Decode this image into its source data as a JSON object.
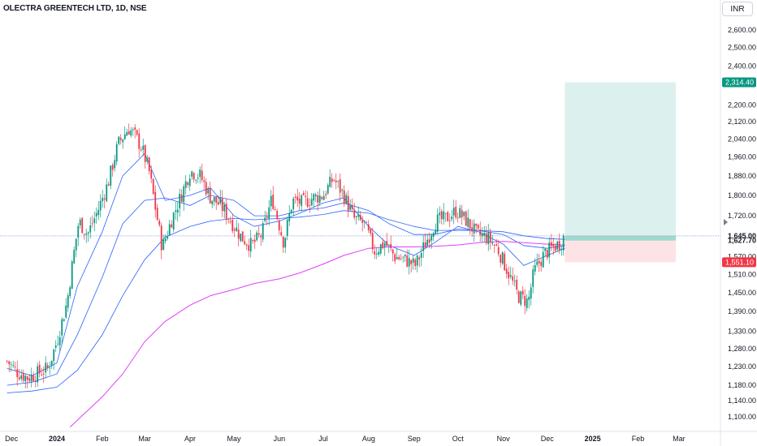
{
  "header": {
    "symbol_title": "OLECTRA GREENTECH LTD, 1D, NSE",
    "currency_button": "INR"
  },
  "chart_data": {
    "type": "candlestick",
    "title": "OLECTRA GREENTECH LTD, 1D, NSE",
    "currency": "INR",
    "y_axis": {
      "scale": "log",
      "position": "right",
      "ticks": [
        2600,
        2500,
        2400,
        2200,
        2120,
        2040,
        1960,
        1880,
        1800,
        1720,
        1627.7,
        1570,
        1510,
        1450,
        1390,
        1330,
        1280,
        1230,
        1180,
        1140,
        1100
      ],
      "tick_labels": [
        "2,600.00",
        "2,500.00",
        "2,400.00",
        "2,200.00",
        "2,120.00",
        "2,040.00",
        "1,960.00",
        "1,880.00",
        "1,800.00",
        "1,720.00",
        "1,627.70",
        "1,570.00",
        "1,510.00",
        "1,450.00",
        "1,390.00",
        "1,330.00",
        "1,280.00",
        "1,230.00",
        "1,180.00",
        "1,140.00",
        "1,100.00"
      ],
      "bold_ticks": [
        1645,
        1627.7
      ],
      "range": [
        1070,
        2680
      ]
    },
    "x_axis": {
      "labels": [
        "Dec",
        "2024",
        "Feb",
        "Mar",
        "Apr",
        "May",
        "Jun",
        "Jul",
        "Aug",
        "Sep",
        "Oct",
        "Nov",
        "Dec",
        "2025",
        "Feb",
        "Mar"
      ],
      "bold_labels": [
        "2024",
        "2025"
      ]
    },
    "price_badges": [
      {
        "label": "2,314.40",
        "value": 2314.4,
        "color": "#089981"
      },
      {
        "label": "1,551.10",
        "value": 1551.1,
        "color": "#f23645"
      }
    ],
    "axis_labels": {
      "current_price": "1,645.00",
      "current_value": 1645
    },
    "position_tool": {
      "type": "long",
      "entry": 1627.7,
      "target": 2314.4,
      "stop": 1551.1,
      "profit_color": "#089981",
      "loss_color": "#f23645"
    },
    "close_path": [
      [
        "2023-11-28",
        1245
      ],
      [
        "2023-12-05",
        1215
      ],
      [
        "2023-12-12",
        1200
      ],
      [
        "2023-12-18",
        1210
      ],
      [
        "2023-12-26",
        1225
      ],
      [
        "2024-01-01",
        1300
      ],
      [
        "2024-01-08",
        1420
      ],
      [
        "2024-01-12",
        1560
      ],
      [
        "2024-01-16",
        1700
      ],
      [
        "2024-01-22",
        1650
      ],
      [
        "2024-01-29",
        1740
      ],
      [
        "2024-02-05",
        1850
      ],
      [
        "2024-02-12",
        2020
      ],
      [
        "2024-02-19",
        2090
      ],
      [
        "2024-02-23",
        2060
      ],
      [
        "2024-02-28",
        2000
      ],
      [
        "2024-03-04",
        1900
      ],
      [
        "2024-03-08",
        1760
      ],
      [
        "2024-03-13",
        1600
      ],
      [
        "2024-03-19",
        1700
      ],
      [
        "2024-03-26",
        1800
      ],
      [
        "2024-04-01",
        1900
      ],
      [
        "2024-04-08",
        1880
      ],
      [
        "2024-04-15",
        1790
      ],
      [
        "2024-04-22",
        1760
      ],
      [
        "2024-04-29",
        1700
      ],
      [
        "2024-05-06",
        1640
      ],
      [
        "2024-05-13",
        1610
      ],
      [
        "2024-05-20",
        1650
      ],
      [
        "2024-05-27",
        1790
      ],
      [
        "2024-06-04",
        1620
      ],
      [
        "2024-06-10",
        1780
      ],
      [
        "2024-06-17",
        1770
      ],
      [
        "2024-06-24",
        1790
      ],
      [
        "2024-07-01",
        1800
      ],
      [
        "2024-07-08",
        1870
      ],
      [
        "2024-07-15",
        1800
      ],
      [
        "2024-07-22",
        1710
      ],
      [
        "2024-07-29",
        1690
      ],
      [
        "2024-08-05",
        1590
      ],
      [
        "2024-08-12",
        1620
      ],
      [
        "2024-08-19",
        1570
      ],
      [
        "2024-08-26",
        1560
      ],
      [
        "2024-09-02",
        1540
      ],
      [
        "2024-09-09",
        1620
      ],
      [
        "2024-09-16",
        1700
      ],
      [
        "2024-09-23",
        1710
      ],
      [
        "2024-09-30",
        1740
      ],
      [
        "2024-10-07",
        1700
      ],
      [
        "2024-10-14",
        1650
      ],
      [
        "2024-10-21",
        1640
      ],
      [
        "2024-10-28",
        1600
      ],
      [
        "2024-11-04",
        1520
      ],
      [
        "2024-11-11",
        1440
      ],
      [
        "2024-11-18",
        1420
      ],
      [
        "2024-11-22",
        1520
      ],
      [
        "2024-11-29",
        1580
      ],
      [
        "2024-12-04",
        1600
      ],
      [
        "2024-12-10",
        1620
      ],
      [
        "2024-12-13",
        1645
      ]
    ],
    "moving_averages": [
      {
        "color": "#2962ff",
        "width": 0.8,
        "points": [
          [
            "2023-11-28",
            1225
          ],
          [
            "2023-12-15",
            1205
          ],
          [
            "2024-01-01",
            1240
          ],
          [
            "2024-01-15",
            1470
          ],
          [
            "2024-02-01",
            1660
          ],
          [
            "2024-02-15",
            1880
          ],
          [
            "2024-03-01",
            1975
          ],
          [
            "2024-03-15",
            1780
          ],
          [
            "2024-04-01",
            1800
          ],
          [
            "2024-04-15",
            1830
          ],
          [
            "2024-05-01",
            1720
          ],
          [
            "2024-05-15",
            1680
          ],
          [
            "2024-06-01",
            1700
          ],
          [
            "2024-06-15",
            1730
          ],
          [
            "2024-07-01",
            1770
          ],
          [
            "2024-07-15",
            1790
          ],
          [
            "2024-08-01",
            1680
          ],
          [
            "2024-08-15",
            1610
          ],
          [
            "2024-09-01",
            1575
          ],
          [
            "2024-09-15",
            1620
          ],
          [
            "2024-10-01",
            1680
          ],
          [
            "2024-10-15",
            1660
          ],
          [
            "2024-11-01",
            1615
          ],
          [
            "2024-11-15",
            1540
          ],
          [
            "2024-12-01",
            1575
          ],
          [
            "2024-12-13",
            1600
          ]
        ]
      },
      {
        "color": "#2962ff",
        "width": 0.8,
        "points": [
          [
            "2023-11-28",
            1180
          ],
          [
            "2023-12-15",
            1188
          ],
          [
            "2024-01-01",
            1210
          ],
          [
            "2024-01-15",
            1320
          ],
          [
            "2024-02-01",
            1500
          ],
          [
            "2024-02-15",
            1690
          ],
          [
            "2024-03-01",
            1780
          ],
          [
            "2024-03-15",
            1790
          ],
          [
            "2024-04-01",
            1760
          ],
          [
            "2024-04-15",
            1800
          ],
          [
            "2024-05-01",
            1780
          ],
          [
            "2024-05-15",
            1720
          ],
          [
            "2024-06-01",
            1720
          ],
          [
            "2024-06-15",
            1740
          ],
          [
            "2024-07-01",
            1750
          ],
          [
            "2024-07-15",
            1770
          ],
          [
            "2024-08-01",
            1740
          ],
          [
            "2024-08-15",
            1690
          ],
          [
            "2024-09-01",
            1650
          ],
          [
            "2024-09-15",
            1650
          ],
          [
            "2024-10-01",
            1670
          ],
          [
            "2024-10-15",
            1665
          ],
          [
            "2024-11-01",
            1650
          ],
          [
            "2024-11-15",
            1610
          ],
          [
            "2024-12-01",
            1600
          ],
          [
            "2024-12-13",
            1610
          ]
        ]
      },
      {
        "color": "#2962ff",
        "width": 0.8,
        "points": [
          [
            "2023-11-28",
            1160
          ],
          [
            "2023-12-15",
            1165
          ],
          [
            "2024-01-01",
            1175
          ],
          [
            "2024-01-15",
            1220
          ],
          [
            "2024-02-01",
            1320
          ],
          [
            "2024-02-15",
            1440
          ],
          [
            "2024-03-01",
            1560
          ],
          [
            "2024-03-15",
            1640
          ],
          [
            "2024-04-01",
            1680
          ],
          [
            "2024-04-15",
            1700
          ],
          [
            "2024-05-01",
            1710
          ],
          [
            "2024-05-15",
            1705
          ],
          [
            "2024-06-01",
            1710
          ],
          [
            "2024-06-15",
            1715
          ],
          [
            "2024-07-01",
            1725
          ],
          [
            "2024-07-15",
            1740
          ],
          [
            "2024-08-01",
            1730
          ],
          [
            "2024-08-15",
            1705
          ],
          [
            "2024-09-01",
            1680
          ],
          [
            "2024-09-15",
            1665
          ],
          [
            "2024-10-01",
            1665
          ],
          [
            "2024-10-15",
            1665
          ],
          [
            "2024-11-01",
            1660
          ],
          [
            "2024-11-15",
            1645
          ],
          [
            "2024-12-01",
            1635
          ],
          [
            "2024-12-13",
            1632
          ]
        ]
      },
      {
        "color": "#e040fb",
        "width": 1.0,
        "points": [
          [
            "2024-01-10",
            1075
          ],
          [
            "2024-02-01",
            1150
          ],
          [
            "2024-02-15",
            1210
          ],
          [
            "2024-03-01",
            1300
          ],
          [
            "2024-03-15",
            1360
          ],
          [
            "2024-04-01",
            1410
          ],
          [
            "2024-04-15",
            1440
          ],
          [
            "2024-05-01",
            1460
          ],
          [
            "2024-05-15",
            1480
          ],
          [
            "2024-06-01",
            1495
          ],
          [
            "2024-06-15",
            1515
          ],
          [
            "2024-07-01",
            1545
          ],
          [
            "2024-07-15",
            1575
          ],
          [
            "2024-08-01",
            1600
          ],
          [
            "2024-08-15",
            1605
          ],
          [
            "2024-09-01",
            1605
          ],
          [
            "2024-09-15",
            1607
          ],
          [
            "2024-10-01",
            1612
          ],
          [
            "2024-10-15",
            1620
          ],
          [
            "2024-11-01",
            1625
          ],
          [
            "2024-11-15",
            1620
          ],
          [
            "2024-12-01",
            1615
          ],
          [
            "2024-12-13",
            1612
          ]
        ]
      }
    ]
  },
  "colors": {
    "up": "#089981",
    "down": "#f23645",
    "price_line": "#7b9bd8",
    "grid_axis_text": "#131722"
  }
}
